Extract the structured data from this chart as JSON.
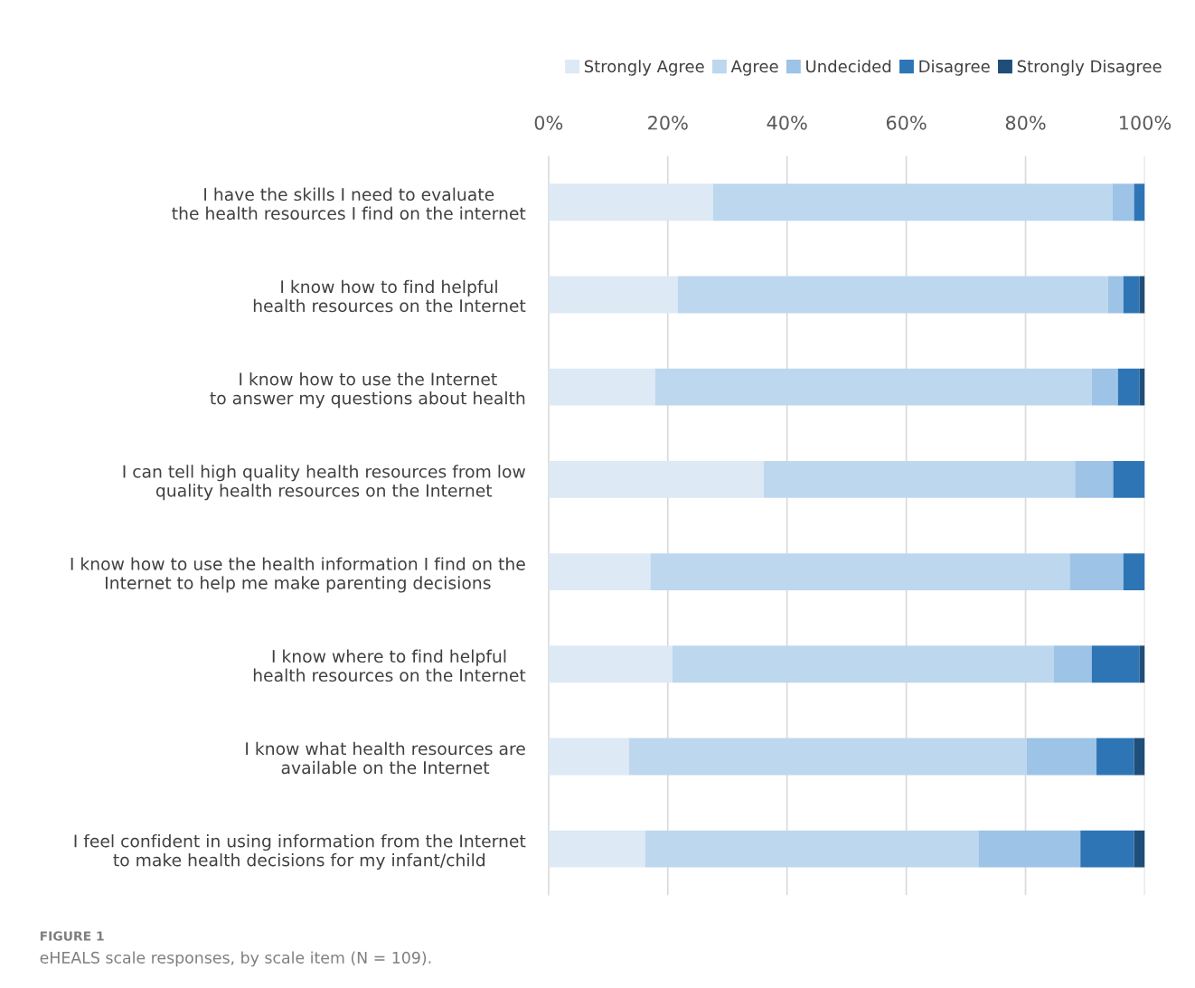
{
  "chart_data": {
    "type": "bar",
    "orientation": "horizontal",
    "stacked": true,
    "categories": [
      "I have the skills I need to evaluate\nthe health resources I find on the internet",
      "I know how to find helpful\nhealth resources on the Internet",
      "I know how to use the Internet\nto answer my questions about health",
      "I can tell high quality health resources from low\nquality health resources on the Internet",
      "I know how to use the health information I find on the\nInternet to help me make parenting decisions",
      "I know where to find helpful\nhealth resources on the Internet",
      "I know what health resources are\navailable on the Internet",
      "I feel confident in using information from the Internet\nto make health decisions for my infant/child"
    ],
    "series": [
      {
        "name": "Strongly Agree",
        "color": "#dde9f5",
        "values": [
          27.6,
          21.7,
          17.9,
          36.1,
          17.1,
          20.8,
          13.5,
          16.2
        ]
      },
      {
        "name": "Agree",
        "color": "#bdd7ee",
        "values": [
          67.0,
          72.1,
          73.2,
          52.2,
          70.3,
          63.9,
          66.7,
          55.9
        ]
      },
      {
        "name": "Undecided",
        "color": "#9dc3e6",
        "values": [
          3.6,
          2.6,
          4.4,
          6.4,
          9.0,
          6.4,
          11.7,
          17.1
        ]
      },
      {
        "name": "Disagree",
        "color": "#2e75b6",
        "values": [
          1.8,
          2.7,
          3.6,
          5.3,
          3.6,
          8.0,
          6.3,
          9.0
        ]
      },
      {
        "name": "Strongly Disagree",
        "color": "#1f4e79",
        "values": [
          0,
          0.9,
          0.9,
          0,
          0,
          0.9,
          1.8,
          1.8
        ]
      }
    ],
    "xlim": [
      0,
      100
    ],
    "xticks": [
      {
        "value": 0,
        "label": "0%"
      },
      {
        "value": 20,
        "label": "20%"
      },
      {
        "value": 40,
        "label": "40%"
      },
      {
        "value": 60,
        "label": "60%"
      },
      {
        "value": 80,
        "label": "80%"
      },
      {
        "value": 100,
        "label": "100%"
      }
    ],
    "grid": "x",
    "legend": "top right",
    "annotations": [
      "FIGURE 1",
      "eHEALS scale responses, by scale item (N = 109)."
    ]
  }
}
